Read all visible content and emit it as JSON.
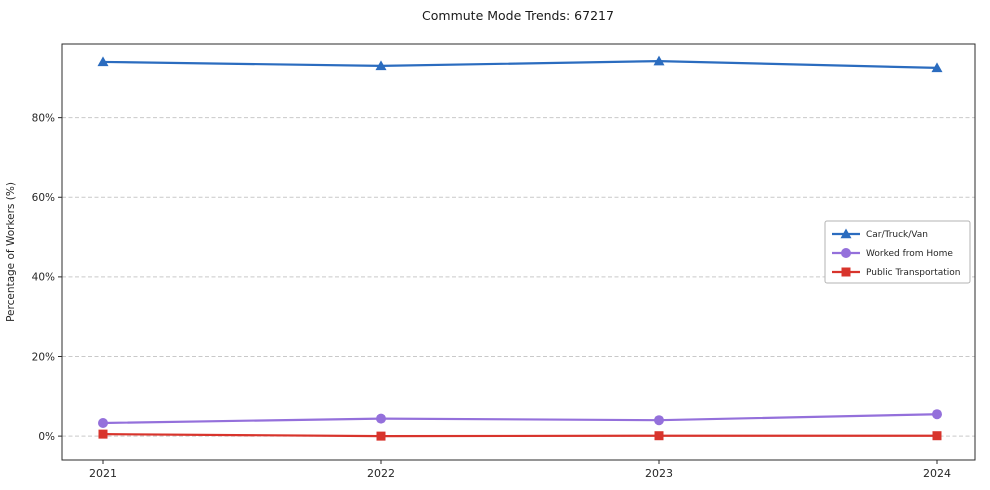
{
  "chart_data": {
    "type": "line",
    "title": "Commute Mode Trends: 67217",
    "xlabel": "",
    "ylabel": "Percentage of Workers (%)",
    "x": [
      "2021",
      "2022",
      "2023",
      "2024"
    ],
    "yticks": [
      0,
      20,
      40,
      60,
      80
    ],
    "ytick_labels": [
      "0%",
      "20%",
      "40%",
      "60%",
      "80%"
    ],
    "ylim": [
      -6,
      98.5
    ],
    "grid": "horizontal-dashed",
    "legend_position": "middle-right",
    "series": [
      {
        "name": "Car/Truck/Van",
        "color": "#2b6cbf",
        "marker": "triangle",
        "values": [
          94.0,
          93.0,
          94.2,
          92.5
        ]
      },
      {
        "name": "Worked from Home",
        "color": "#9470db",
        "marker": "circle",
        "values": [
          3.3,
          4.4,
          4.0,
          5.5
        ]
      },
      {
        "name": "Public Transportation",
        "color": "#d8342c",
        "marker": "square",
        "values": [
          0.5,
          0.0,
          0.1,
          0.1
        ]
      }
    ]
  }
}
